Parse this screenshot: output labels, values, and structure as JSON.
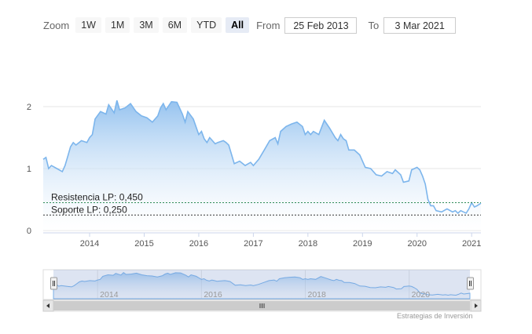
{
  "rangeSelector": {
    "zoom_label": "Zoom",
    "buttons": [
      "1W",
      "1M",
      "3M",
      "6M",
      "YTD",
      "All"
    ],
    "active": "All",
    "from_label": "From",
    "from_value": "25 Feb 2013",
    "to_label": "To",
    "to_value": "3 Mar 2021"
  },
  "credit": "Estrategias de Inversión",
  "colors": {
    "line": "#7cb5ec",
    "fill_top": "#90c0ee",
    "resistance": "#2e8b57",
    "support": "#333333"
  },
  "chart_data": {
    "type": "area",
    "title": "",
    "xlabel": "",
    "ylabel": "",
    "ylim": [
      0,
      2.2
    ],
    "xlim": [
      2013.15,
      2021.17
    ],
    "y_ticks": [
      "0",
      "1",
      "2"
    ],
    "y_tick_values": [
      0,
      1,
      2
    ],
    "x_ticks": [
      "2014",
      "2015",
      "2016",
      "2017",
      "2018",
      "2019",
      "2020",
      "2021"
    ],
    "x_tick_values": [
      2014,
      2015,
      2016,
      2017,
      2018,
      2019,
      2020,
      2021
    ],
    "grid": true,
    "plot_lines": [
      {
        "label": "Resistencia LP: 0,450",
        "value": 0.45,
        "style": "dashed"
      },
      {
        "label": "Soporte LP: 0,250",
        "value": 0.25,
        "style": "dashed"
      }
    ],
    "series": [
      {
        "x": [
          2013.15,
          2013.2,
          2013.25,
          2013.3,
          2013.4,
          2013.5,
          2013.55,
          2013.6,
          2013.65,
          2013.7,
          2013.75,
          2013.85,
          2013.95,
          2014.0,
          2014.05,
          2014.1,
          2014.2,
          2014.3,
          2014.35,
          2014.45,
          2014.5,
          2014.55,
          2014.65,
          2014.75,
          2014.85,
          2014.95,
          2015.05,
          2015.15,
          2015.25,
          2015.3,
          2015.35,
          2015.4,
          2015.5,
          2015.6,
          2015.7,
          2015.75,
          2015.8,
          2015.9,
          2016.0,
          2016.05,
          2016.1,
          2016.15,
          2016.2,
          2016.25,
          2016.3,
          2016.35,
          2016.45,
          2016.5,
          2016.55,
          2016.65,
          2016.75,
          2016.85,
          2016.95,
          2017.0,
          2017.1,
          2017.2,
          2017.3,
          2017.4,
          2017.45,
          2017.5,
          2017.6,
          2017.7,
          2017.8,
          2017.9,
          2017.95,
          2018.0,
          2018.05,
          2018.1,
          2018.2,
          2018.3,
          2018.4,
          2018.5,
          2018.55,
          2018.6,
          2018.65,
          2018.7,
          2018.75,
          2018.85,
          2018.95,
          2019.05,
          2019.15,
          2019.25,
          2019.35,
          2019.45,
          2019.55,
          2019.6,
          2019.7,
          2019.75,
          2019.85,
          2019.9,
          2019.95,
          2020.0,
          2020.05,
          2020.1,
          2020.15,
          2020.2,
          2020.25,
          2020.3,
          2020.35,
          2020.45,
          2020.55,
          2020.65,
          2020.7,
          2020.75,
          2020.8,
          2020.85,
          2020.9,
          2020.95,
          2021.0,
          2021.05,
          2021.1,
          2021.17
        ],
        "y": [
          1.15,
          1.18,
          1.0,
          1.05,
          1.0,
          0.95,
          1.05,
          1.2,
          1.35,
          1.42,
          1.38,
          1.45,
          1.42,
          1.5,
          1.55,
          1.8,
          1.92,
          1.88,
          2.03,
          1.9,
          2.1,
          1.95,
          1.98,
          2.05,
          1.92,
          1.85,
          1.82,
          1.75,
          1.85,
          1.98,
          2.05,
          1.95,
          2.08,
          2.07,
          1.88,
          1.75,
          1.92,
          1.8,
          1.55,
          1.6,
          1.48,
          1.42,
          1.5,
          1.45,
          1.4,
          1.42,
          1.45,
          1.42,
          1.38,
          1.08,
          1.12,
          1.05,
          1.1,
          1.05,
          1.15,
          1.3,
          1.45,
          1.5,
          1.4,
          1.6,
          1.68,
          1.72,
          1.75,
          1.68,
          1.55,
          1.6,
          1.55,
          1.6,
          1.55,
          1.78,
          1.65,
          1.5,
          1.45,
          1.55,
          1.48,
          1.45,
          1.3,
          1.3,
          1.22,
          1.02,
          1.0,
          0.9,
          0.88,
          0.95,
          0.92,
          0.98,
          0.9,
          0.78,
          0.8,
          0.98,
          1.0,
          1.02,
          0.98,
          0.88,
          0.75,
          0.5,
          0.4,
          0.4,
          0.32,
          0.3,
          0.35,
          0.3,
          0.32,
          0.28,
          0.32,
          0.3,
          0.28,
          0.35,
          0.45,
          0.38,
          0.4,
          0.44
        ]
      }
    ]
  }
}
